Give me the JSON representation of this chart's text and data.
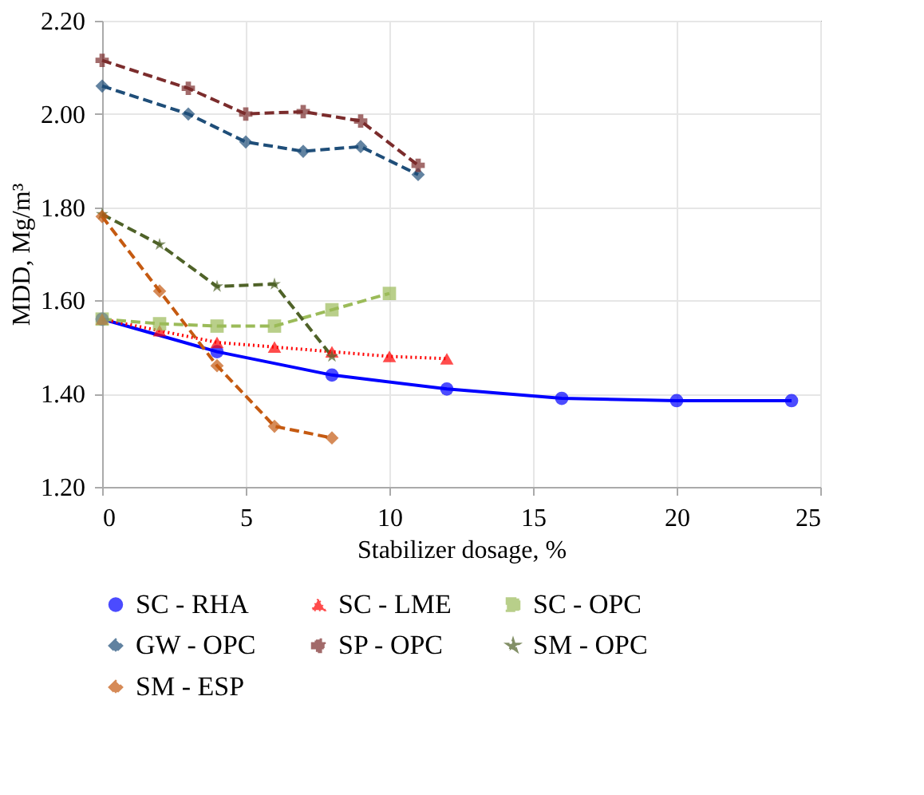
{
  "chart_data": {
    "type": "line",
    "xlabel": "Stabilizer dosage, %",
    "ylabel": "MDD, Mg/m³",
    "xlim": [
      0,
      25
    ],
    "xticks": [
      0,
      5,
      10,
      15,
      20,
      25
    ],
    "ylim": [
      1.2,
      2.2
    ],
    "yticks": [
      {
        "value": 1.2,
        "label": "1.20"
      },
      {
        "value": 1.4,
        "label": "1.40"
      },
      {
        "value": 1.6,
        "label": "1.60"
      },
      {
        "value": 1.8,
        "label": "1.80"
      },
      {
        "value": 2.0,
        "label": "2.00"
      },
      {
        "value": 2.2,
        "label": "2.20"
      }
    ],
    "grid": true,
    "legend": "bottom",
    "series": [
      {
        "name": "SC - RHA",
        "color": "#0000ff",
        "marker": "circle",
        "line_style": "solid",
        "x": [
          0,
          4,
          8,
          12,
          16,
          20,
          24
        ],
        "values": [
          1.56,
          1.49,
          1.44,
          1.41,
          1.39,
          1.385,
          1.385
        ]
      },
      {
        "name": "SC - LME",
        "color": "#ff0000",
        "marker": "triangle",
        "line_style": "dotted",
        "x": [
          0,
          2,
          4,
          6,
          8,
          10,
          12
        ],
        "values": [
          1.56,
          1.535,
          1.51,
          1.5,
          1.49,
          1.48,
          1.475
        ]
      },
      {
        "name": "SC - OPC",
        "color": "#9bbb59",
        "marker": "square",
        "line_style": "dashed",
        "x": [
          0,
          2,
          4,
          6,
          8,
          10
        ],
        "values": [
          1.56,
          1.55,
          1.545,
          1.545,
          1.58,
          1.615
        ]
      },
      {
        "name": "GW - OPC",
        "color": "#1f4e79",
        "marker": "diamond",
        "line_style": "dashed",
        "x": [
          0,
          3,
          5,
          7,
          9,
          11
        ],
        "values": [
          2.06,
          2.0,
          1.94,
          1.92,
          1.93,
          1.87
        ]
      },
      {
        "name": "SP - OPC",
        "color": "#7b2c2c",
        "marker": "cross",
        "line_style": "dashed",
        "x": [
          0,
          3,
          5,
          7,
          9,
          11
        ],
        "values": [
          2.115,
          2.055,
          2.0,
          2.005,
          1.985,
          1.89
        ]
      },
      {
        "name": "SM - OPC",
        "color": "#4f6228",
        "marker": "star",
        "line_style": "dashed",
        "x": [
          0,
          2,
          4,
          6,
          8
        ],
        "values": [
          1.785,
          1.72,
          1.63,
          1.635,
          1.48
        ]
      },
      {
        "name": "SM - ESP",
        "color": "#c55a11",
        "marker": "diamond",
        "line_style": "dashed",
        "x": [
          0,
          2,
          4,
          6,
          8
        ],
        "values": [
          1.78,
          1.62,
          1.46,
          1.33,
          1.305
        ]
      }
    ]
  }
}
